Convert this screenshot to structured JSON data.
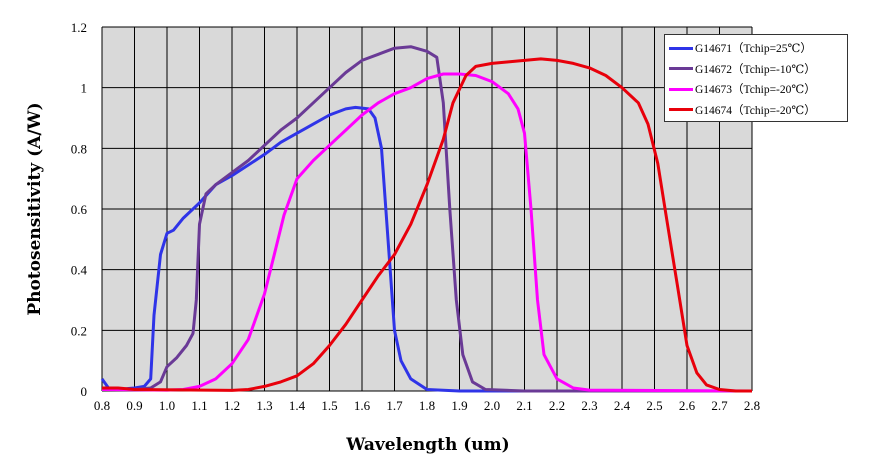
{
  "chart_data": {
    "type": "line",
    "title": "",
    "xlabel": "Wavelength (um)",
    "ylabel": "Photosensitivity (A/W)",
    "xlim": [
      0.8,
      2.8
    ],
    "ylim": [
      0,
      1.2
    ],
    "xticks": [
      "0.8",
      "0.9",
      "1.0",
      "1.1",
      "1.2",
      "1.3",
      "1.4",
      "1.5",
      "1.6",
      "1.7",
      "1.8",
      "1.9",
      "2.0",
      "2.1",
      "2.2",
      "2.3",
      "2.4",
      "2.5",
      "2.6",
      "2.7",
      "2.8"
    ],
    "yticks": [
      "0",
      "0.2",
      "0.4",
      "0.6",
      "0.8",
      "1",
      "1.2"
    ],
    "grid": true,
    "background": "#d9d9d9",
    "legend_position": "top-right",
    "series": [
      {
        "name": "G14671（Tchip=25℃）",
        "color": "#2f34e8",
        "points": [
          [
            0.8,
            0.04
          ],
          [
            0.82,
            0.01
          ],
          [
            0.85,
            0.005
          ],
          [
            0.9,
            0.01
          ],
          [
            0.93,
            0.015
          ],
          [
            0.95,
            0.04
          ],
          [
            0.96,
            0.25
          ],
          [
            0.98,
            0.45
          ],
          [
            1.0,
            0.52
          ],
          [
            1.02,
            0.53
          ],
          [
            1.05,
            0.57
          ],
          [
            1.1,
            0.62
          ],
          [
            1.15,
            0.68
          ],
          [
            1.2,
            0.71
          ],
          [
            1.25,
            0.745
          ],
          [
            1.3,
            0.78
          ],
          [
            1.35,
            0.82
          ],
          [
            1.4,
            0.85
          ],
          [
            1.45,
            0.88
          ],
          [
            1.5,
            0.91
          ],
          [
            1.55,
            0.93
          ],
          [
            1.58,
            0.935
          ],
          [
            1.62,
            0.93
          ],
          [
            1.64,
            0.9
          ],
          [
            1.66,
            0.8
          ],
          [
            1.68,
            0.5
          ],
          [
            1.7,
            0.2
          ],
          [
            1.72,
            0.1
          ],
          [
            1.75,
            0.04
          ],
          [
            1.8,
            0.005
          ],
          [
            1.9,
            0.0
          ],
          [
            2.8,
            0.0
          ]
        ]
      },
      {
        "name": "G14672（Tchip=-10℃）",
        "color": "#6a3a96",
        "points": [
          [
            0.8,
            0.01
          ],
          [
            0.9,
            0.005
          ],
          [
            0.95,
            0.01
          ],
          [
            0.98,
            0.03
          ],
          [
            1.0,
            0.08
          ],
          [
            1.03,
            0.11
          ],
          [
            1.06,
            0.15
          ],
          [
            1.08,
            0.19
          ],
          [
            1.09,
            0.3
          ],
          [
            1.1,
            0.55
          ],
          [
            1.12,
            0.65
          ],
          [
            1.15,
            0.68
          ],
          [
            1.2,
            0.72
          ],
          [
            1.25,
            0.76
          ],
          [
            1.3,
            0.81
          ],
          [
            1.35,
            0.86
          ],
          [
            1.4,
            0.9
          ],
          [
            1.45,
            0.95
          ],
          [
            1.5,
            1.0
          ],
          [
            1.55,
            1.05
          ],
          [
            1.6,
            1.09
          ],
          [
            1.65,
            1.11
          ],
          [
            1.7,
            1.13
          ],
          [
            1.75,
            1.135
          ],
          [
            1.8,
            1.12
          ],
          [
            1.83,
            1.1
          ],
          [
            1.85,
            0.95
          ],
          [
            1.87,
            0.6
          ],
          [
            1.89,
            0.3
          ],
          [
            1.91,
            0.12
          ],
          [
            1.94,
            0.03
          ],
          [
            1.98,
            0.005
          ],
          [
            2.1,
            0.0
          ],
          [
            2.8,
            0.0
          ]
        ]
      },
      {
        "name": "G14673（Tchip=-20℃）",
        "color": "#ff00ff",
        "points": [
          [
            0.8,
            0.005
          ],
          [
            1.0,
            0.003
          ],
          [
            1.05,
            0.005
          ],
          [
            1.1,
            0.015
          ],
          [
            1.15,
            0.04
          ],
          [
            1.2,
            0.09
          ],
          [
            1.25,
            0.17
          ],
          [
            1.3,
            0.32
          ],
          [
            1.33,
            0.45
          ],
          [
            1.36,
            0.58
          ],
          [
            1.4,
            0.7
          ],
          [
            1.45,
            0.76
          ],
          [
            1.5,
            0.81
          ],
          [
            1.55,
            0.86
          ],
          [
            1.6,
            0.91
          ],
          [
            1.65,
            0.95
          ],
          [
            1.7,
            0.98
          ],
          [
            1.75,
            1.0
          ],
          [
            1.8,
            1.03
          ],
          [
            1.85,
            1.045
          ],
          [
            1.9,
            1.045
          ],
          [
            1.95,
            1.04
          ],
          [
            2.0,
            1.02
          ],
          [
            2.05,
            0.98
          ],
          [
            2.08,
            0.93
          ],
          [
            2.1,
            0.85
          ],
          [
            2.12,
            0.6
          ],
          [
            2.14,
            0.3
          ],
          [
            2.16,
            0.12
          ],
          [
            2.2,
            0.04
          ],
          [
            2.25,
            0.01
          ],
          [
            2.3,
            0.003
          ],
          [
            2.8,
            0.0
          ]
        ]
      },
      {
        "name": "G14674（Tchip=-20℃）",
        "color": "#e8000b",
        "points": [
          [
            0.8,
            0.01
          ],
          [
            0.85,
            0.01
          ],
          [
            0.9,
            0.005
          ],
          [
            1.2,
            0.002
          ],
          [
            1.25,
            0.005
          ],
          [
            1.3,
            0.015
          ],
          [
            1.35,
            0.03
          ],
          [
            1.4,
            0.05
          ],
          [
            1.45,
            0.09
          ],
          [
            1.5,
            0.15
          ],
          [
            1.55,
            0.22
          ],
          [
            1.6,
            0.3
          ],
          [
            1.65,
            0.38
          ],
          [
            1.7,
            0.45
          ],
          [
            1.75,
            0.55
          ],
          [
            1.8,
            0.68
          ],
          [
            1.85,
            0.83
          ],
          [
            1.88,
            0.95
          ],
          [
            1.92,
            1.04
          ],
          [
            1.95,
            1.07
          ],
          [
            2.0,
            1.08
          ],
          [
            2.05,
            1.085
          ],
          [
            2.1,
            1.09
          ],
          [
            2.15,
            1.095
          ],
          [
            2.2,
            1.09
          ],
          [
            2.25,
            1.08
          ],
          [
            2.3,
            1.065
          ],
          [
            2.35,
            1.04
          ],
          [
            2.4,
            1.0
          ],
          [
            2.45,
            0.95
          ],
          [
            2.48,
            0.88
          ],
          [
            2.51,
            0.75
          ],
          [
            2.54,
            0.55
          ],
          [
            2.57,
            0.35
          ],
          [
            2.6,
            0.15
          ],
          [
            2.63,
            0.06
          ],
          [
            2.66,
            0.02
          ],
          [
            2.7,
            0.005
          ],
          [
            2.75,
            0.0
          ],
          [
            2.8,
            0.0
          ]
        ]
      }
    ]
  }
}
